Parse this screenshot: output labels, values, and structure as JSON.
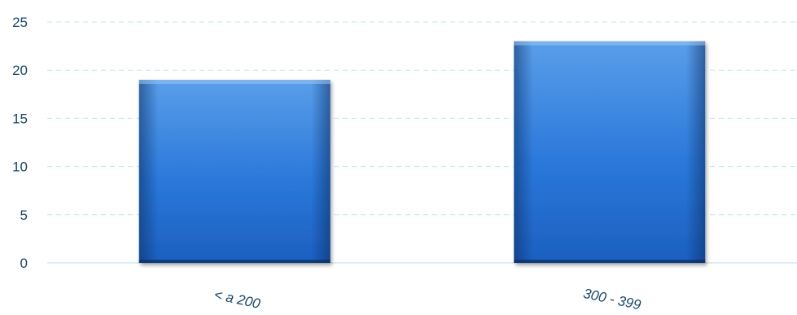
{
  "chart_data": {
    "type": "bar",
    "categories": [
      "< a 200",
      "300 - 399"
    ],
    "values": [
      19,
      23
    ],
    "ylim": [
      0,
      25
    ],
    "yticks": [
      0,
      5,
      10,
      15,
      20,
      25
    ],
    "grid": true,
    "legend": "none",
    "colors": {
      "bar_top": "#4f94e6",
      "bar_mid": "#2774d8",
      "bar_edge": "#0c2f63",
      "grid": "#bfe7ee",
      "axis": "#cfeaf0",
      "tick_text": "#17476b"
    }
  }
}
